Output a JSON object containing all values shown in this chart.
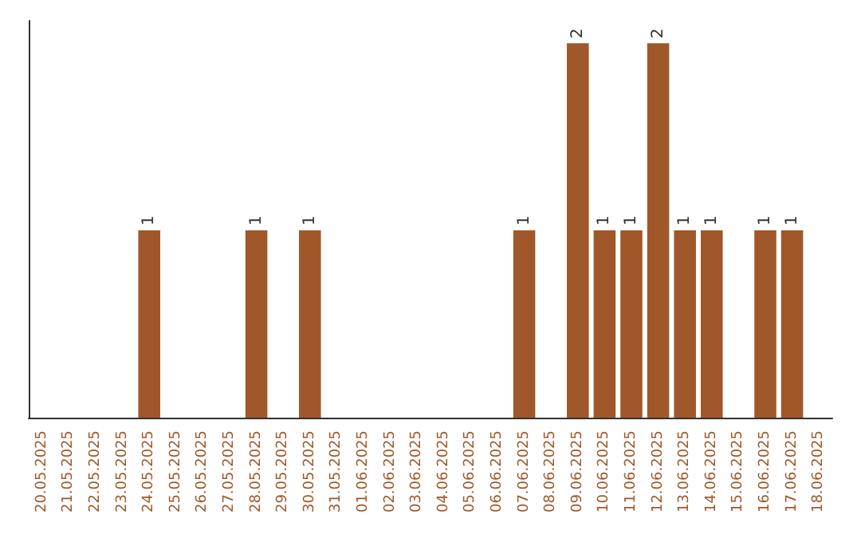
{
  "chart_data": {
    "type": "bar",
    "categories": [
      "20.05.2025",
      "21.05.2025",
      "22.05.2025",
      "23.05.2025",
      "24.05.2025",
      "25.05.2025",
      "26.05.2025",
      "27.05.2025",
      "28.05.2025",
      "29.05.2025",
      "30.05.2025",
      "31.05.2025",
      "01.06.2025",
      "02.06.2025",
      "03.06.2025",
      "04.06.2025",
      "05.06.2025",
      "06.06.2025",
      "07.06.2025",
      "08.06.2025",
      "09.06.2025",
      "10.06.2025",
      "11.06.2025",
      "12.06.2025",
      "13.06.2025",
      "14.06.2025",
      "15.06.2025",
      "16.06.2025",
      "17.06.2025",
      "18.06.2025"
    ],
    "values": [
      0,
      0,
      0,
      0,
      1,
      0,
      0,
      0,
      1,
      0,
      1,
      0,
      0,
      0,
      0,
      0,
      0,
      0,
      1,
      0,
      2,
      1,
      1,
      2,
      1,
      1,
      0,
      1,
      1,
      0
    ],
    "value_labels": [
      null,
      null,
      null,
      null,
      "1",
      null,
      null,
      null,
      "1",
      null,
      "1",
      null,
      null,
      null,
      null,
      null,
      null,
      null,
      "1",
      null,
      "2",
      "1",
      "1",
      "2",
      "1",
      "1",
      null,
      "1",
      "1",
      null
    ],
    "color": "#a0582a",
    "grid": false,
    "tick_labels": "x"
  }
}
